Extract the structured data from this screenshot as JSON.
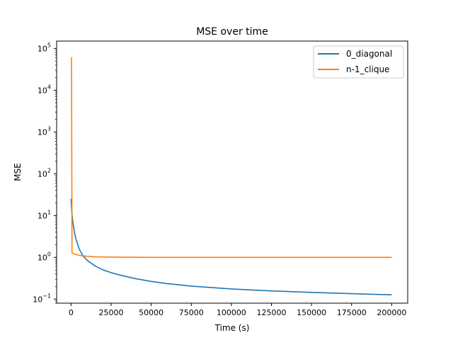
{
  "chart_data": {
    "type": "line",
    "title": "MSE over time",
    "xlabel": "Time (s)",
    "ylabel": "MSE",
    "xscale": "linear",
    "yscale": "log",
    "xlim": [
      -9000,
      210000
    ],
    "ylim": [
      0.08,
      150000
    ],
    "xticks": [
      0,
      25000,
      50000,
      75000,
      100000,
      125000,
      150000,
      175000,
      200000
    ],
    "xtick_labels": [
      "0",
      "25000",
      "50000",
      "75000",
      "100000",
      "125000",
      "150000",
      "175000",
      "200000"
    ],
    "yticks": [
      0.1,
      1,
      10,
      100,
      1000,
      10000,
      100000
    ],
    "ytick_labels": [
      {
        "base": "10",
        "exp": "−1"
      },
      {
        "base": "10",
        "exp": "0"
      },
      {
        "base": "10",
        "exp": "1"
      },
      {
        "base": "10",
        "exp": "2"
      },
      {
        "base": "10",
        "exp": "3"
      },
      {
        "base": "10",
        "exp": "4"
      },
      {
        "base": "10",
        "exp": "5"
      }
    ],
    "legend_position": "top-right",
    "series": [
      {
        "name": "0_diagonal",
        "color": "#1f77b4",
        "x": [
          0,
          200,
          500,
          1000,
          2000,
          3000,
          5000,
          7500,
          10000,
          15000,
          20000,
          25000,
          30000,
          40000,
          50000,
          60000,
          75000,
          100000,
          125000,
          150000,
          175000,
          200000
        ],
        "y": [
          25,
          18,
          12,
          7.5,
          4.2,
          2.8,
          1.6,
          1.08,
          0.85,
          0.62,
          0.5,
          0.43,
          0.38,
          0.31,
          0.265,
          0.235,
          0.205,
          0.175,
          0.157,
          0.145,
          0.135,
          0.127
        ]
      },
      {
        "name": "n-1_clique",
        "color": "#ff7f0e",
        "x": [
          0,
          300,
          600,
          1000,
          2000,
          5000,
          10000,
          15000,
          20000,
          30000,
          50000,
          100000,
          150000,
          200000
        ],
        "y": [
          60000,
          60000,
          1.3,
          1.25,
          1.2,
          1.12,
          1.06,
          1.03,
          1.02,
          1.01,
          1.0,
          1.0,
          1.0,
          1.0
        ]
      }
    ]
  }
}
